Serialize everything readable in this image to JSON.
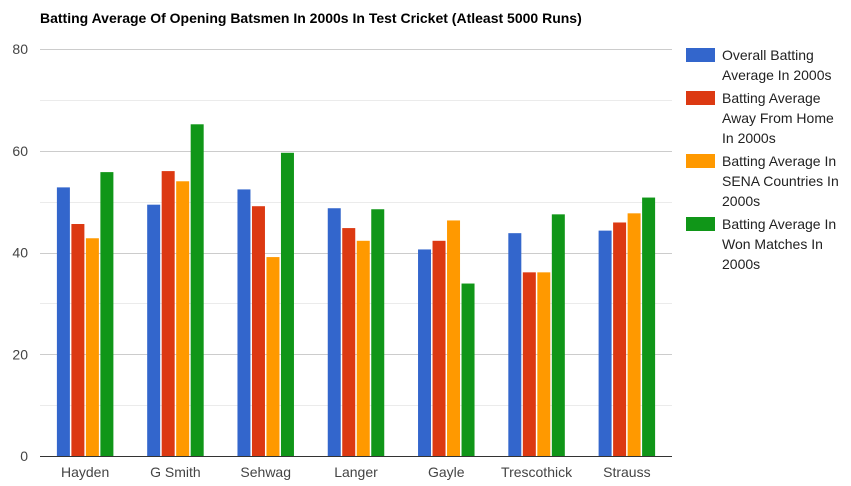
{
  "chart_data": {
    "type": "bar",
    "title": "Batting Average Of Opening Batsmen In 2000s In Test Cricket (Atleast 5000 Runs)",
    "xlabel": "",
    "ylabel": "",
    "ylim": [
      0,
      80
    ],
    "y_ticks": [
      0,
      20,
      40,
      60,
      80
    ],
    "grid": true,
    "legend_position": "right",
    "categories": [
      "Hayden",
      "G Smith",
      "Sehwag",
      "Langer",
      "Gayle",
      "Trescothick",
      "Strauss"
    ],
    "series": [
      {
        "name": "Overall Batting Average In 2000s",
        "color": "#3366cc",
        "values": [
          52.8,
          49.4,
          52.4,
          48.7,
          40.6,
          43.8,
          44.3
        ]
      },
      {
        "name": "Batting Average Away From Home In 2000s",
        "color": "#dc3912",
        "values": [
          45.6,
          56.0,
          49.1,
          44.8,
          42.3,
          36.1,
          45.9
        ]
      },
      {
        "name": "Batting Average In SENA Countries In 2000s",
        "color": "#ff9900",
        "values": [
          42.8,
          54.0,
          39.1,
          42.3,
          46.3,
          36.1,
          47.7
        ]
      },
      {
        "name": "Batting Average In Won Matches In 2000s",
        "color": "#109618",
        "values": [
          55.8,
          65.2,
          59.6,
          48.5,
          33.9,
          47.5,
          50.8
        ]
      }
    ]
  }
}
